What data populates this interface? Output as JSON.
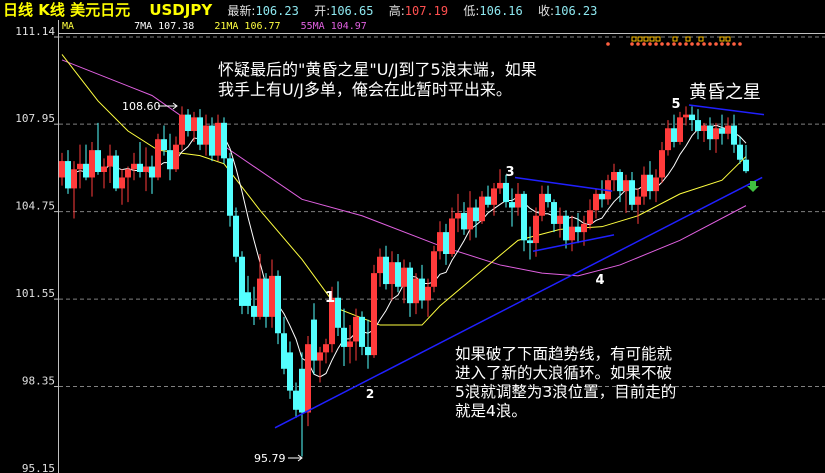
{
  "header": {
    "title": "日线 K线  美元日元",
    "symbol": "USDJPY",
    "last_label": "最新:",
    "last": "106.23",
    "open_label": "开:",
    "open": "106.65",
    "high_label": "高:",
    "high": "107.19",
    "low_label": "低:",
    "low": "106.16",
    "close_label": "收:",
    "close": "106.23"
  },
  "ma_bar": {
    "label": "MA",
    "ma7": "7MA 107.38",
    "ma21": "21MA 106.77",
    "ma55": "55MA 104.97"
  },
  "colors": {
    "up": "#ff3b3b",
    "down": "#54ffff",
    "ma7": "#ffffff",
    "ma21": "#ffff40",
    "ma55": "#e060e0",
    "trendline": "#2020ff",
    "grid": "#808080",
    "title": "#ffff00"
  },
  "annotations": {
    "top_note_1": "怀疑最后的\"黄昏之星\"U/J到了5浪末端，如果",
    "top_note_2": "我手上有U/J多单，俺会在此暂时平出来。",
    "star_label": "黄昏之星",
    "bottom_note_1": "如果破了下面趋势线，有可能就",
    "bottom_note_2": "进入了新的大浪循环。如果不破",
    "bottom_note_3": "5浪就调整为3浪位置，目前走的",
    "bottom_note_4": "就是4浪。",
    "high_marker": "108.60",
    "low_marker": "95.79",
    "waves": [
      "1",
      "2",
      "3",
      "4",
      "5"
    ]
  },
  "chart_data": {
    "type": "candlestick",
    "y_ticks": [
      "111.14",
      "107.95",
      "104.75",
      "101.55",
      "98.35",
      "95.15"
    ],
    "ylim": [
      95.15,
      111.14
    ],
    "grid": "horizontal dashed",
    "ohlc": [
      [
        106.0,
        106.9,
        105.7,
        106.6
      ],
      [
        106.6,
        107.0,
        105.4,
        105.6
      ],
      [
        105.6,
        106.6,
        104.5,
        106.3
      ],
      [
        106.3,
        107.2,
        105.6,
        106.5
      ],
      [
        106.5,
        107.2,
        105.9,
        106.0
      ],
      [
        106.0,
        107.3,
        105.3,
        107.0
      ],
      [
        107.0,
        108.0,
        106.1,
        106.2
      ],
      [
        106.2,
        106.7,
        105.6,
        106.4
      ],
      [
        106.4,
        107.2,
        105.8,
        106.8
      ],
      [
        106.8,
        107.0,
        105.5,
        105.6
      ],
      [
        105.6,
        106.3,
        105.0,
        106.0
      ],
      [
        106.0,
        106.4,
        105.1,
        106.3
      ],
      [
        106.3,
        106.9,
        105.9,
        106.5
      ],
      [
        106.5,
        107.3,
        106.0,
        106.2
      ],
      [
        106.2,
        107.1,
        105.5,
        106.4
      ],
      [
        106.4,
        106.8,
        105.4,
        106.0
      ],
      [
        106.0,
        107.6,
        105.9,
        107.4
      ],
      [
        107.4,
        107.9,
        106.8,
        107.0
      ],
      [
        107.0,
        107.6,
        105.9,
        106.3
      ],
      [
        106.3,
        107.5,
        106.2,
        107.2
      ],
      [
        107.2,
        108.6,
        107.0,
        108.3
      ],
      [
        108.3,
        108.5,
        107.5,
        107.7
      ],
      [
        107.7,
        108.4,
        107.3,
        108.2
      ],
      [
        108.2,
        108.5,
        107.0,
        107.2
      ],
      [
        107.2,
        108.3,
        106.8,
        107.9
      ],
      [
        107.9,
        108.2,
        106.6,
        106.8
      ],
      [
        106.8,
        108.3,
        106.6,
        108.0
      ],
      [
        108.0,
        108.2,
        106.5,
        106.7
      ],
      [
        106.7,
        106.9,
        104.2,
        104.6
      ],
      [
        104.6,
        104.9,
        102.9,
        103.1
      ],
      [
        103.1,
        103.3,
        101.0,
        101.3
      ],
      [
        101.8,
        102.4,
        101.0,
        101.3
      ],
      [
        101.3,
        102.0,
        100.6,
        100.9
      ],
      [
        100.9,
        103.2,
        100.8,
        102.3
      ],
      [
        102.3,
        102.5,
        100.5,
        100.9
      ],
      [
        100.9,
        103.0,
        100.5,
        102.4
      ],
      [
        102.4,
        102.6,
        99.9,
        100.3
      ],
      [
        100.3,
        100.9,
        98.8,
        99.0
      ],
      [
        99.6,
        100.0,
        97.9,
        98.2
      ],
      [
        98.2,
        98.5,
        97.2,
        97.5
      ],
      [
        99.0,
        99.6,
        95.79,
        97.4
      ],
      [
        97.4,
        100.2,
        96.9,
        99.9
      ],
      [
        100.8,
        101.4,
        98.8,
        99.3
      ],
      [
        99.3,
        99.8,
        98.5,
        99.6
      ],
      [
        99.6,
        100.1,
        99.2,
        99.9
      ],
      [
        99.9,
        102.0,
        99.6,
        101.6
      ],
      [
        101.6,
        102.2,
        100.2,
        100.5
      ],
      [
        100.5,
        101.2,
        99.1,
        99.8
      ],
      [
        99.8,
        100.6,
        99.2,
        100.0
      ],
      [
        100.0,
        101.2,
        99.3,
        100.9
      ],
      [
        100.9,
        101.1,
        99.5,
        99.8
      ],
      [
        99.8,
        100.8,
        99.0,
        99.5
      ],
      [
        99.5,
        102.8,
        99.4,
        102.5
      ],
      [
        102.5,
        103.4,
        102.0,
        103.1
      ],
      [
        103.1,
        103.5,
        101.9,
        102.1
      ],
      [
        102.1,
        103.3,
        101.5,
        102.9
      ],
      [
        102.9,
        103.2,
        101.8,
        102.0
      ],
      [
        102.0,
        103.0,
        101.4,
        102.7
      ],
      [
        102.7,
        102.9,
        100.9,
        101.4
      ],
      [
        101.4,
        102.5,
        101.0,
        102.3
      ],
      [
        102.3,
        102.8,
        101.2,
        101.5
      ],
      [
        101.5,
        102.3,
        100.9,
        102.0
      ],
      [
        102.0,
        103.5,
        101.8,
        103.3
      ],
      [
        103.3,
        104.4,
        103.0,
        104.0
      ],
      [
        104.0,
        104.3,
        102.8,
        103.2
      ],
      [
        103.2,
        104.9,
        103.1,
        104.5
      ],
      [
        104.5,
        105.4,
        104.0,
        104.7
      ],
      [
        104.7,
        105.1,
        103.9,
        104.1
      ],
      [
        104.1,
        105.5,
        103.7,
        104.9
      ],
      [
        104.9,
        105.2,
        103.8,
        104.4
      ],
      [
        104.4,
        105.5,
        104.3,
        105.3
      ],
      [
        105.3,
        105.7,
        104.9,
        105.0
      ],
      [
        105.0,
        105.8,
        104.6,
        105.6
      ],
      [
        105.6,
        106.3,
        105.4,
        105.8
      ],
      [
        105.8,
        106.1,
        104.9,
        105.1
      ],
      [
        105.1,
        105.6,
        104.2,
        104.9
      ],
      [
        104.9,
        105.8,
        104.6,
        105.4
      ],
      [
        105.4,
        105.5,
        103.3,
        103.7
      ],
      [
        103.7,
        104.2,
        103.0,
        103.6
      ],
      [
        103.6,
        104.9,
        103.1,
        104.6
      ],
      [
        104.6,
        105.7,
        104.4,
        105.4
      ],
      [
        105.4,
        105.7,
        104.9,
        105.1
      ],
      [
        105.1,
        105.2,
        104.0,
        104.3
      ],
      [
        104.3,
        104.9,
        103.8,
        104.6
      ],
      [
        104.6,
        104.8,
        103.4,
        103.7
      ],
      [
        103.7,
        104.6,
        103.3,
        104.2
      ],
      [
        104.2,
        104.7,
        103.6,
        104.0
      ],
      [
        104.0,
        104.6,
        103.5,
        104.3
      ],
      [
        104.3,
        105.2,
        104.1,
        104.8
      ],
      [
        104.8,
        105.6,
        104.5,
        105.4
      ],
      [
        105.4,
        105.9,
        104.9,
        105.2
      ],
      [
        105.2,
        106.1,
        105.0,
        105.9
      ],
      [
        105.9,
        106.5,
        105.5,
        106.2
      ],
      [
        106.2,
        106.3,
        105.1,
        105.5
      ],
      [
        105.5,
        106.1,
        104.7,
        105.9
      ],
      [
        105.9,
        106.2,
        104.8,
        105.0
      ],
      [
        105.0,
        105.6,
        104.3,
        105.3
      ],
      [
        105.3,
        106.4,
        105.0,
        106.1
      ],
      [
        106.1,
        106.6,
        105.2,
        105.5
      ],
      [
        105.5,
        106.3,
        105.1,
        106.0
      ],
      [
        106.0,
        107.3,
        105.8,
        107.0
      ],
      [
        107.0,
        108.1,
        106.8,
        107.8
      ],
      [
        107.8,
        108.3,
        107.1,
        107.3
      ],
      [
        107.3,
        108.4,
        107.2,
        108.2
      ],
      [
        108.2,
        108.6,
        107.9,
        108.3
      ],
      [
        108.3,
        108.6,
        107.7,
        108.1
      ],
      [
        108.1,
        108.5,
        107.4,
        107.7
      ],
      [
        107.7,
        108.0,
        107.3,
        107.9
      ],
      [
        107.9,
        108.2,
        107.0,
        107.4
      ],
      [
        107.4,
        108.0,
        106.9,
        107.8
      ],
      [
        107.8,
        108.3,
        107.2,
        107.6
      ],
      [
        107.6,
        108.2,
        107.4,
        107.9
      ],
      [
        107.9,
        108.3,
        106.9,
        107.2
      ],
      [
        107.2,
        107.5,
        106.5,
        106.65
      ],
      [
        106.65,
        107.19,
        106.16,
        106.23
      ]
    ],
    "ma21": [
      [
        0,
        110.5
      ],
      [
        6,
        108.8
      ],
      [
        11,
        107.7
      ],
      [
        16,
        107.0
      ],
      [
        23,
        106.8
      ],
      [
        27,
        106.5
      ],
      [
        33,
        104.8
      ],
      [
        40,
        103.0
      ],
      [
        46,
        101.2
      ],
      [
        53,
        100.6
      ],
      [
        60,
        100.6
      ],
      [
        63,
        101.3
      ],
      [
        70,
        102.6
      ],
      [
        76,
        103.7
      ],
      [
        83,
        104.1
      ],
      [
        90,
        104.2
      ],
      [
        96,
        104.6
      ],
      [
        103,
        105.4
      ],
      [
        110,
        105.9
      ],
      [
        114,
        106.77
      ]
    ],
    "ma55": [
      [
        0,
        110.3
      ],
      [
        15,
        109.0
      ],
      [
        28,
        107.0
      ],
      [
        40,
        105.2
      ],
      [
        50,
        104.6
      ],
      [
        63,
        103.5
      ],
      [
        73,
        102.8
      ],
      [
        80,
        102.5
      ],
      [
        86,
        102.4
      ],
      [
        93,
        102.8
      ],
      [
        103,
        103.7
      ],
      [
        114,
        104.97
      ]
    ],
    "trendlines": [
      {
        "from": [
          35.5,
          96.84
        ],
        "to": [
          116.7,
          106.0
        ]
      },
      {
        "from": [
          75.5,
          106.0
        ],
        "to": [
          91.7,
          105.5
        ]
      },
      {
        "from": [
          78.5,
          103.3
        ],
        "to": [
          92.0,
          103.9
        ]
      },
      {
        "from": [
          104.5,
          108.65
        ],
        "to": [
          117.0,
          108.3
        ]
      }
    ]
  }
}
